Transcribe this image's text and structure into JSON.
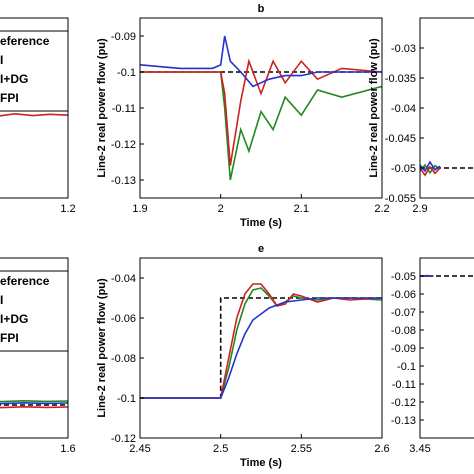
{
  "chart_data": [
    {
      "id": "a",
      "type": "line",
      "panel_label": "",
      "xlabel": "",
      "ylabel": "",
      "xlim": [
        1.0,
        1.2
      ],
      "ylim": [
        -0.13,
        -0.09
      ],
      "xticks": [
        {
          "v": 1.2,
          "t": "1.2"
        }
      ],
      "yticks": [],
      "series": [
        {
          "color": "#000000",
          "dash": true,
          "x": [
            1.0,
            1.2
          ],
          "y": [
            -0.1105,
            -0.1105
          ]
        },
        {
          "color": "#2233cc",
          "x": [
            1.0,
            1.04,
            1.08,
            1.12,
            1.16,
            1.2
          ],
          "y": [
            -0.1085,
            -0.1088,
            -0.1083,
            -0.1087,
            -0.1084,
            -0.1086
          ]
        },
        {
          "color": "#cc2222",
          "x": [
            1.0,
            1.04,
            1.08,
            1.12,
            1.16,
            1.2
          ],
          "y": [
            -0.1115,
            -0.1118,
            -0.1113,
            -0.1117,
            -0.1114,
            -0.1116
          ]
        },
        {
          "color": "#228822",
          "x": [
            1.0,
            1.04,
            1.08,
            1.12,
            1.16,
            1.2
          ],
          "y": [
            -0.1095,
            -0.1098,
            -0.1093,
            -0.1097,
            -0.1094,
            -0.1096
          ]
        }
      ]
    },
    {
      "id": "b",
      "type": "line",
      "panel_label": "b",
      "xlabel": "Time (s)",
      "ylabel": "Line-2 real power flow (pu)",
      "xlim": [
        1.9,
        2.2
      ],
      "ylim": [
        -0.135,
        -0.085
      ],
      "xticks": [
        {
          "v": 1.9,
          "t": "1.9"
        },
        {
          "v": 2.0,
          "t": "2"
        },
        {
          "v": 2.1,
          "t": "2.1"
        },
        {
          "v": 2.2,
          "t": "2.2"
        }
      ],
      "yticks": [
        {
          "v": -0.09,
          "t": "-0.09"
        },
        {
          "v": -0.1,
          "t": "-0.1"
        },
        {
          "v": -0.11,
          "t": "-0.11"
        },
        {
          "v": -0.12,
          "t": "-0.12"
        },
        {
          "v": -0.13,
          "t": "-0.13"
        }
      ],
      "series": [
        {
          "color": "#000000",
          "dash": true,
          "x": [
            1.9,
            2.2
          ],
          "y": [
            -0.1,
            -0.1
          ]
        },
        {
          "color": "#228822",
          "x": [
            1.9,
            1.95,
            2.0,
            2.005,
            2.012,
            2.025,
            2.035,
            2.05,
            2.065,
            2.08,
            2.1,
            2.12,
            2.15,
            2.2
          ],
          "y": [
            -0.1,
            -0.1,
            -0.1,
            -0.11,
            -0.13,
            -0.116,
            -0.122,
            -0.111,
            -0.116,
            -0.107,
            -0.112,
            -0.105,
            -0.107,
            -0.104
          ]
        },
        {
          "color": "#cc2222",
          "x": [
            1.9,
            1.95,
            2.0,
            2.005,
            2.012,
            2.025,
            2.035,
            2.05,
            2.065,
            2.08,
            2.1,
            2.12,
            2.15,
            2.2
          ],
          "y": [
            -0.1,
            -0.1,
            -0.1,
            -0.106,
            -0.126,
            -0.108,
            -0.097,
            -0.106,
            -0.097,
            -0.103,
            -0.097,
            -0.102,
            -0.099,
            -0.1
          ]
        },
        {
          "color": "#2233cc",
          "x": [
            1.9,
            1.95,
            1.99,
            2.0,
            2.005,
            2.012,
            2.025,
            2.04,
            2.06,
            2.08,
            2.1,
            2.12,
            2.15,
            2.2
          ],
          "y": [
            -0.098,
            -0.099,
            -0.099,
            -0.098,
            -0.09,
            -0.097,
            -0.1,
            -0.104,
            -0.102,
            -0.101,
            -0.101,
            -0.1,
            -0.1,
            -0.1
          ]
        }
      ]
    },
    {
      "id": "c",
      "type": "line",
      "panel_label": "",
      "xlabel": "",
      "ylabel": "Line-2 real power flow (pu)",
      "xlim": [
        2.9,
        3.1
      ],
      "ylim": [
        -0.055,
        -0.025
      ],
      "xticks": [
        {
          "v": 2.9,
          "t": "2.9"
        }
      ],
      "yticks": [
        {
          "v": -0.03,
          "t": "-0.03"
        },
        {
          "v": -0.035,
          "t": "-0.035"
        },
        {
          "v": -0.04,
          "t": "-0.04"
        },
        {
          "v": -0.045,
          "t": "-0.045"
        },
        {
          "v": -0.05,
          "t": "-0.05"
        },
        {
          "v": -0.055,
          "t": "-0.055"
        }
      ],
      "series": [
        {
          "color": "#000000",
          "dash": true,
          "x": [
            2.9,
            3.1
          ],
          "y": [
            -0.05,
            -0.05
          ]
        },
        {
          "color": "#228822",
          "x": [
            2.9,
            2.91,
            2.92,
            2.93,
            2.94
          ],
          "y": [
            -0.0505,
            -0.0495,
            -0.0508,
            -0.0496,
            -0.0502
          ]
        },
        {
          "color": "#cc2222",
          "x": [
            2.9,
            2.91,
            2.92,
            2.93,
            2.94
          ],
          "y": [
            -0.05,
            -0.0512,
            -0.0498,
            -0.0509,
            -0.05
          ]
        },
        {
          "color": "#2233cc",
          "x": [
            2.9,
            2.91,
            2.92,
            2.93,
            2.94
          ],
          "y": [
            -0.0495,
            -0.0505,
            -0.049,
            -0.0503,
            -0.0497
          ]
        }
      ]
    },
    {
      "id": "d",
      "type": "line",
      "panel_label": "",
      "xlabel": "",
      "ylabel": "",
      "xlim": [
        1.4,
        1.6
      ],
      "ylim": [
        -0.12,
        -0.03
      ],
      "xticks": [
        {
          "v": 1.6,
          "t": "1.6"
        }
      ],
      "yticks": [],
      "series": [
        {
          "color": "#000000",
          "dash": true,
          "x": [
            1.4,
            1.6
          ],
          "y": [
            -0.1035,
            -0.1035
          ]
        },
        {
          "color": "#2233cc",
          "x": [
            1.4,
            1.45,
            1.5,
            1.55,
            1.6
          ],
          "y": [
            -0.1025,
            -0.1028,
            -0.1024,
            -0.1027,
            -0.1025
          ]
        },
        {
          "color": "#cc2222",
          "x": [
            1.4,
            1.45,
            1.5,
            1.55,
            1.6
          ],
          "y": [
            -0.1045,
            -0.1048,
            -0.1044,
            -0.1047,
            -0.1045
          ]
        },
        {
          "color": "#228822",
          "x": [
            1.4,
            1.45,
            1.5,
            1.55,
            1.6
          ],
          "y": [
            -0.1015,
            -0.1018,
            -0.1014,
            -0.1017,
            -0.1015
          ]
        }
      ]
    },
    {
      "id": "e",
      "type": "line",
      "panel_label": "e",
      "xlabel": "Time (s)",
      "ylabel": "Line-2 real power flow (pu)",
      "xlim": [
        2.45,
        2.6
      ],
      "ylim": [
        -0.12,
        -0.03
      ],
      "xticks": [
        {
          "v": 2.45,
          "t": "2.45"
        },
        {
          "v": 2.5,
          "t": "2.5"
        },
        {
          "v": 2.55,
          "t": "2.55"
        },
        {
          "v": 2.6,
          "t": "2.6"
        }
      ],
      "yticks": [
        {
          "v": -0.04,
          "t": "-0.04"
        },
        {
          "v": -0.06,
          "t": "-0.06"
        },
        {
          "v": -0.08,
          "t": "-0.08"
        },
        {
          "v": -0.1,
          "t": "-0.1"
        },
        {
          "v": -0.12,
          "t": "-0.12"
        }
      ],
      "series": [
        {
          "color": "#000000",
          "dash": true,
          "x": [
            2.45,
            2.5,
            2.5,
            2.6
          ],
          "y": [
            -0.1,
            -0.1,
            -0.05,
            -0.05
          ]
        },
        {
          "color": "#228822",
          "x": [
            2.45,
            2.48,
            2.5,
            2.505,
            2.51,
            2.515,
            2.52,
            2.525,
            2.53,
            2.535,
            2.54,
            2.545,
            2.55,
            2.56,
            2.57,
            2.58,
            2.6
          ],
          "y": [
            -0.1,
            -0.1,
            -0.1,
            -0.085,
            -0.066,
            -0.053,
            -0.046,
            -0.045,
            -0.049,
            -0.054,
            -0.052,
            -0.049,
            -0.05,
            -0.051,
            -0.05,
            -0.05,
            -0.051
          ]
        },
        {
          "color": "#cc2222",
          "x": [
            2.45,
            2.48,
            2.5,
            2.505,
            2.51,
            2.515,
            2.52,
            2.525,
            2.53,
            2.535,
            2.54,
            2.545,
            2.55,
            2.56,
            2.57,
            2.58,
            2.6
          ],
          "y": [
            -0.1,
            -0.1,
            -0.1,
            -0.08,
            -0.06,
            -0.048,
            -0.043,
            -0.043,
            -0.048,
            -0.054,
            -0.053,
            -0.048,
            -0.049,
            -0.052,
            -0.05,
            -0.051,
            -0.05
          ]
        },
        {
          "color": "#2233cc",
          "x": [
            2.45,
            2.48,
            2.5,
            2.505,
            2.51,
            2.515,
            2.52,
            2.53,
            2.54,
            2.55,
            2.56,
            2.6
          ],
          "y": [
            -0.1,
            -0.1,
            -0.1,
            -0.09,
            -0.078,
            -0.068,
            -0.061,
            -0.055,
            -0.052,
            -0.051,
            -0.05,
            -0.05
          ]
        }
      ]
    },
    {
      "id": "f",
      "type": "line",
      "panel_label": "",
      "xlabel": "",
      "ylabel": "",
      "xlim": [
        3.45,
        3.6
      ],
      "ylim": [
        -0.14,
        -0.04
      ],
      "xticks": [
        {
          "v": 3.45,
          "t": "3.45"
        }
      ],
      "yticks": [
        {
          "v": -0.05,
          "t": "-0.05"
        },
        {
          "v": -0.06,
          "t": "-0.06"
        },
        {
          "v": -0.07,
          "t": "-0.07"
        },
        {
          "v": -0.08,
          "t": "-0.08"
        },
        {
          "v": -0.09,
          "t": "-0.09"
        },
        {
          "v": -0.1,
          "t": "-0.1"
        },
        {
          "v": -0.11,
          "t": "-0.11"
        },
        {
          "v": -0.12,
          "t": "-0.12"
        },
        {
          "v": -0.13,
          "t": "-0.13"
        }
      ],
      "series": [
        {
          "color": "#000000",
          "dash": true,
          "x": [
            3.45,
            3.6
          ],
          "y": [
            -0.05,
            -0.05
          ]
        },
        {
          "color": "#228822",
          "x": [
            3.45,
            3.46,
            3.47
          ],
          "y": [
            -0.05,
            -0.05,
            -0.05
          ]
        },
        {
          "color": "#cc2222",
          "x": [
            3.45,
            3.46,
            3.47
          ],
          "y": [
            -0.0502,
            -0.0498,
            -0.0501
          ]
        },
        {
          "color": "#2233cc",
          "x": [
            3.45,
            3.46,
            3.47
          ],
          "y": [
            -0.0499,
            -0.0501,
            -0.05
          ]
        }
      ]
    }
  ],
  "legend_a": {
    "items": [
      {
        "label": "eference",
        "color": "#000000",
        "dash": true
      },
      {
        "label": "I",
        "color": "#2233cc",
        "dash": false
      },
      {
        "label": "I+DG",
        "color": "#228822",
        "dash": false
      },
      {
        "label": "FPI",
        "color": "#cc2222",
        "dash": false
      }
    ]
  },
  "legend_d": {
    "items": [
      {
        "label": "eference",
        "color": "#000000",
        "dash": true
      },
      {
        "label": "I",
        "color": "#2233cc",
        "dash": false
      },
      {
        "label": "I+DG",
        "color": "#228822",
        "dash": false
      },
      {
        "label": "FPI",
        "color": "#cc2222",
        "dash": false
      }
    ]
  }
}
